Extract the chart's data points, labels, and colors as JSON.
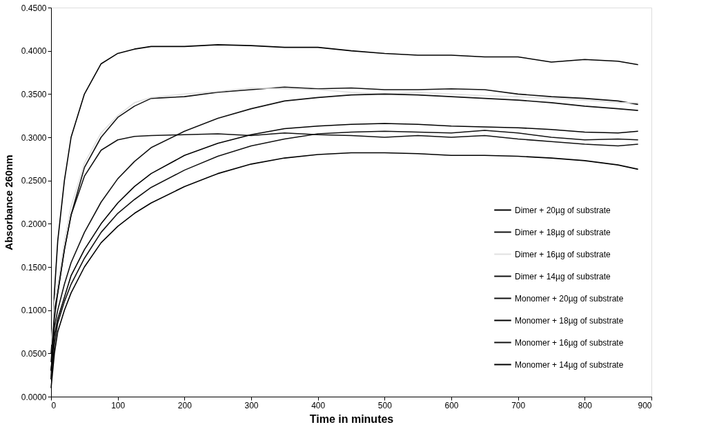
{
  "chart_data": {
    "type": "line",
    "xlabel": "Time in minutes",
    "ylabel": "Absorbance 260nm",
    "x": [
      0,
      5,
      10,
      20,
      30,
      50,
      75,
      100,
      125,
      150,
      200,
      250,
      300,
      350,
      400,
      450,
      500,
      550,
      600,
      650,
      700,
      750,
      800,
      850,
      880
    ],
    "series": [
      {
        "name": "Dimer + 20µg of substrate",
        "color": "#000000",
        "values": [
          0.02,
          0.12,
          0.18,
          0.25,
          0.3,
          0.35,
          0.385,
          0.397,
          0.402,
          0.405,
          0.405,
          0.407,
          0.406,
          0.404,
          0.404,
          0.4,
          0.397,
          0.395,
          0.395,
          0.393,
          0.393,
          0.387,
          0.39,
          0.388,
          0.384
        ]
      },
      {
        "name": "Dimer + 18µg of substrate",
        "color": "#111111",
        "values": [
          0.05,
          0.1,
          0.12,
          0.17,
          0.21,
          0.265,
          0.3,
          0.323,
          0.336,
          0.345,
          0.347,
          0.352,
          0.355,
          0.358,
          0.356,
          0.357,
          0.355,
          0.355,
          0.356,
          0.355,
          0.35,
          0.347,
          0.345,
          0.342,
          0.338
        ]
      },
      {
        "name": "Dimer + 16µg of substrate",
        "color": "#e0e0e0",
        "values": [
          0.06,
          0.11,
          0.13,
          0.18,
          0.22,
          0.27,
          0.305,
          0.325,
          0.34,
          0.346,
          0.35,
          0.353,
          0.357,
          0.356,
          0.355,
          0.352,
          0.35,
          0.352,
          0.35,
          0.348,
          0.347,
          0.345,
          0.343,
          0.34,
          0.34
        ]
      },
      {
        "name": "Dimer + 14µg of substrate",
        "color": "#111111",
        "values": [
          0.04,
          0.09,
          0.12,
          0.17,
          0.21,
          0.255,
          0.285,
          0.297,
          0.301,
          0.302,
          0.303,
          0.304,
          0.302,
          0.305,
          0.303,
          0.302,
          0.3,
          0.302,
          0.3,
          0.302,
          0.298,
          0.295,
          0.292,
          0.29,
          0.292
        ]
      },
      {
        "name": "Monomer + 20µg of substrate",
        "color": "#111111",
        "values": [
          0.03,
          0.08,
          0.1,
          0.13,
          0.155,
          0.19,
          0.225,
          0.252,
          0.272,
          0.288,
          0.307,
          0.322,
          0.333,
          0.342,
          0.346,
          0.349,
          0.35,
          0.349,
          0.347,
          0.345,
          0.343,
          0.34,
          0.336,
          0.333,
          0.331
        ]
      },
      {
        "name": "Monomer + 18µg of substrate",
        "color": "#000000",
        "values": [
          0.03,
          0.07,
          0.09,
          0.115,
          0.14,
          0.17,
          0.2,
          0.224,
          0.243,
          0.258,
          0.279,
          0.293,
          0.303,
          0.31,
          0.313,
          0.315,
          0.316,
          0.315,
          0.313,
          0.312,
          0.311,
          0.309,
          0.306,
          0.305,
          0.307
        ]
      },
      {
        "name": "Monomer + 16µg of substrate",
        "color": "#111111",
        "values": [
          0.02,
          0.06,
          0.085,
          0.11,
          0.13,
          0.16,
          0.19,
          0.212,
          0.228,
          0.242,
          0.262,
          0.278,
          0.29,
          0.298,
          0.304,
          0.306,
          0.307,
          0.306,
          0.305,
          0.308,
          0.305,
          0.3,
          0.297,
          0.298,
          0.297
        ]
      },
      {
        "name": "Monomer + 14µg of substrate",
        "color": "#000000",
        "values": [
          0.01,
          0.05,
          0.075,
          0.1,
          0.12,
          0.15,
          0.178,
          0.197,
          0.212,
          0.224,
          0.243,
          0.258,
          0.269,
          0.276,
          0.28,
          0.282,
          0.282,
          0.281,
          0.279,
          0.279,
          0.278,
          0.276,
          0.273,
          0.268,
          0.263
        ]
      }
    ],
    "xlim": [
      0,
      900
    ],
    "xticks": [
      0,
      100,
      200,
      300,
      400,
      500,
      600,
      700,
      800,
      900
    ],
    "ylim": [
      0,
      0.45
    ],
    "yticks": [
      {
        "value": 0,
        "label": "0.0000"
      },
      {
        "value": 0.05,
        "label": "0.0500"
      },
      {
        "value": 0.1,
        "label": "0.1000"
      },
      {
        "value": 0.15,
        "label": "0.1500"
      },
      {
        "value": 0.2,
        "label": "0.2000"
      },
      {
        "value": 0.25,
        "label": "0.2500"
      },
      {
        "value": 0.3,
        "label": "0.3000"
      },
      {
        "value": 0.35,
        "label": "0.3500"
      },
      {
        "value": 0.4,
        "label": "0.4000"
      },
      {
        "value": 0.45,
        "label": "0.4500"
      }
    ],
    "grid": false,
    "legend": "bottom right",
    "marker": "none",
    "line_style": "solid"
  }
}
